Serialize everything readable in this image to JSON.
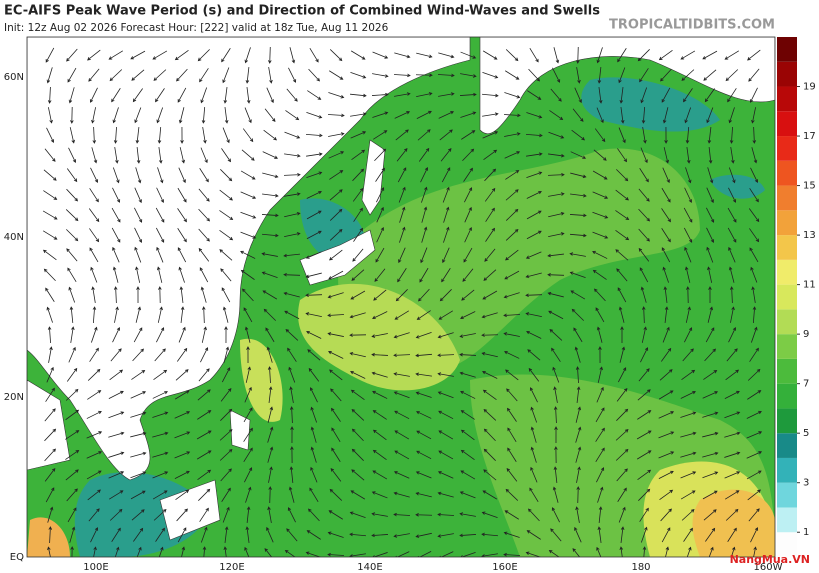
{
  "header": {
    "title": "EC-AIFS Peak Wave Period (s) and Direction of Combined Wind-Waves and Swells",
    "subtitle": "Init: 12z Aug 02 2026   Forecast Hour: [222]   valid at 18z Tue, Aug 11 2026",
    "watermark": "TROPICALTIDBITS.COM"
  },
  "lat_labels": [
    "60N",
    "40N",
    "20N",
    "EQ"
  ],
  "lon_labels": [
    "100E",
    "120E",
    "140E",
    "160E",
    "180",
    "160W"
  ],
  "colorbar": {
    "labels": [
      1,
      3,
      5,
      7,
      9,
      11,
      13,
      15,
      17,
      19
    ]
  },
  "logo": "NangMua.VN"
}
